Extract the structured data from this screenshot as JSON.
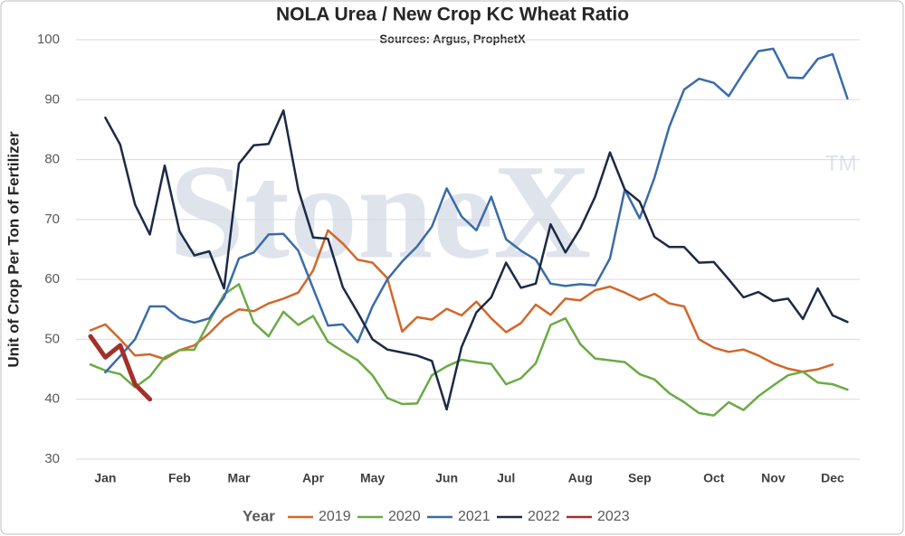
{
  "chart_data": {
    "type": "line",
    "title": "NOLA Urea / New Crop KC Wheat Ratio",
    "subtitle": "Sources: Argus, ProphetX",
    "y_label": "Unit of Crop Per Ton of Fertilizer",
    "legend_title": "Year",
    "watermark": "StoneX",
    "watermark_mark": "TM",
    "categories": [
      null,
      "Jan",
      null,
      null,
      null,
      null,
      "Feb",
      null,
      null,
      null,
      "Mar",
      null,
      null,
      null,
      null,
      "Apr",
      null,
      null,
      null,
      "May",
      null,
      null,
      null,
      null,
      "Jun",
      null,
      null,
      null,
      "Jul",
      null,
      null,
      null,
      null,
      "Aug",
      null,
      null,
      null,
      "Sep",
      null,
      null,
      null,
      null,
      "Oct",
      null,
      null,
      null,
      "Nov",
      null,
      null,
      null,
      "Dec",
      null
    ],
    "ylim": [
      30,
      100
    ],
    "yticks": [
      30,
      40,
      50,
      60,
      70,
      80,
      90,
      100
    ],
    "grid": true,
    "legend": "bottom",
    "series": [
      {
        "name": "2019",
        "color": "#d2672a",
        "values": [
          51.5,
          52.5,
          50,
          47.3,
          47.5,
          46.7,
          48.2,
          49,
          51,
          53.5,
          55,
          54.7,
          56,
          56.8,
          57.8,
          61.5,
          68.2,
          66,
          63.3,
          62.8,
          60.2,
          51.3,
          53.7,
          53.3,
          55.1,
          54,
          56.3,
          53.5,
          51.2,
          52.7,
          55.8,
          54.1,
          56.8,
          56.5,
          58.2,
          58.8,
          57.8,
          56.6,
          57.6,
          56,
          55.5,
          50,
          48.6,
          47.9,
          48.3,
          47.3,
          46,
          45.1,
          44.6,
          45,
          45.8,
          null
        ]
      },
      {
        "name": "2020",
        "color": "#6aab45",
        "values": [
          45.8,
          44.8,
          44.2,
          42,
          43.8,
          47,
          48.2,
          48.3,
          53,
          57.5,
          59.2,
          52.8,
          50.5,
          54.6,
          52.4,
          53.9,
          49.6,
          48,
          46.5,
          44,
          40.2,
          39.2,
          39.3,
          44,
          45.5,
          46.6,
          46.2,
          45.9,
          42.5,
          43.5,
          46,
          52.4,
          53.5,
          49.2,
          46.8,
          46.5,
          46.2,
          44.2,
          43.3,
          41,
          39.5,
          37.7,
          37.3,
          39.5,
          38.2,
          40.5,
          42.3,
          44,
          44.6,
          42.8,
          42.5,
          41.6
        ]
      },
      {
        "name": "2021",
        "color": "#3a6ca8",
        "values": [
          null,
          44.5,
          47.2,
          50,
          55.5,
          55.5,
          53.5,
          52.8,
          53.5,
          57,
          63.5,
          64.5,
          67.5,
          67.6,
          64.8,
          58.5,
          52.3,
          52.5,
          49.5,
          55.5,
          60,
          63,
          65.5,
          68.8,
          75.2,
          70.5,
          68.2,
          73.8,
          66.7,
          64.8,
          63.3,
          59.3,
          58.9,
          59.2,
          59,
          63.5,
          75,
          70.2,
          77,
          85.5,
          91.7,
          93.5,
          92.8,
          90.6,
          94.5,
          98.1,
          98.5,
          93.7,
          93.6,
          96.8,
          97.6,
          90.2
        ]
      },
      {
        "name": "2022",
        "color": "#1c2a45",
        "values": [
          null,
          87,
          82.5,
          72.5,
          67.5,
          79,
          68,
          64,
          64.7,
          58.5,
          79.3,
          82.4,
          82.6,
          88.2,
          75,
          67,
          66.8,
          58.7,
          54.5,
          50,
          48.3,
          47.8,
          47.3,
          46.4,
          38.3,
          48.7,
          54.5,
          57,
          62.8,
          58.6,
          59.3,
          69.2,
          64.5,
          68.5,
          73.8,
          81.2,
          75,
          73,
          67.1,
          65.4,
          65.4,
          62.8,
          62.9,
          60,
          57,
          57.9,
          56.4,
          56.8,
          53.4,
          58.5,
          54,
          52.9
        ]
      },
      {
        "name": "2023",
        "color": "#a3302a",
        "width": 5,
        "values": [
          50.5,
          47,
          49,
          42.5,
          40,
          null,
          null,
          null,
          null,
          null,
          null,
          null,
          null,
          null,
          null,
          null,
          null,
          null,
          null,
          null,
          null,
          null,
          null,
          null,
          null,
          null,
          null,
          null,
          null,
          null,
          null,
          null,
          null,
          null,
          null,
          null,
          null,
          null,
          null,
          null,
          null,
          null,
          null,
          null,
          null,
          null,
          null,
          null,
          null,
          null,
          null,
          null
        ]
      }
    ]
  }
}
